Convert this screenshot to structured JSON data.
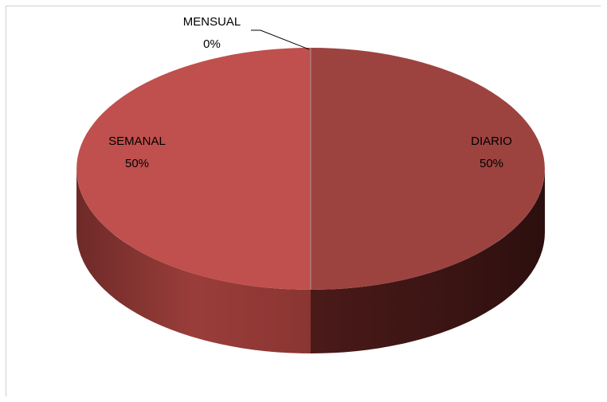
{
  "chart_data": {
    "type": "pie",
    "style": "3d",
    "title": "",
    "slices": [
      {
        "label": "DIARIO",
        "value": 50,
        "pct_label": "50%",
        "color": "#9c4340"
      },
      {
        "label": "SEMANAL",
        "value": 50,
        "pct_label": "50%",
        "color": "#bf504d"
      },
      {
        "label": "MENSUAL",
        "value": 0,
        "pct_label": "0%",
        "color": "#bf504d"
      }
    ],
    "legend": "none"
  }
}
